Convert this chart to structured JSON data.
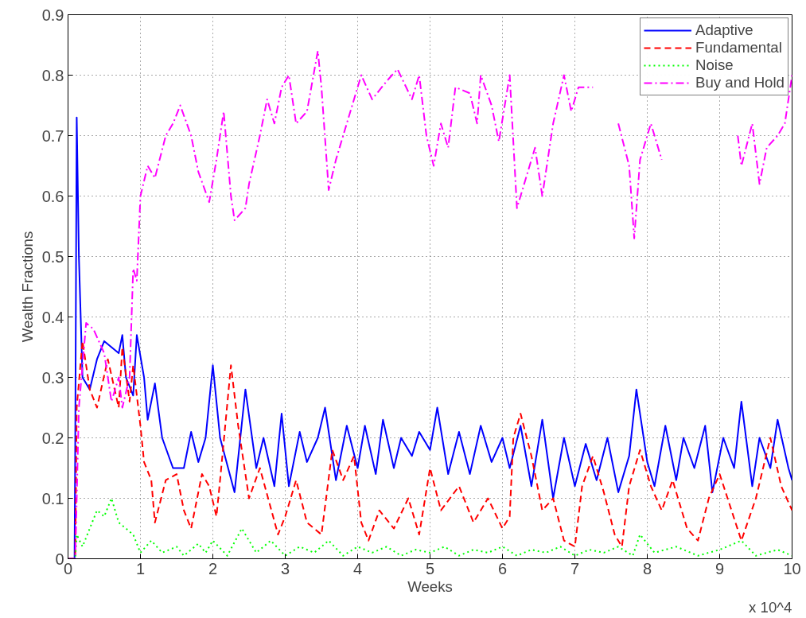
{
  "chart_data": {
    "type": "line",
    "xlabel": "Weeks",
    "ylabel": "Wealth Fractions",
    "annotations": [
      "x 10^4"
    ],
    "xlim": [
      0,
      10
    ],
    "ylim": [
      0,
      0.9
    ],
    "xticks": [
      0,
      1,
      2,
      3,
      4,
      5,
      6,
      7,
      8,
      9,
      10
    ],
    "yticks": [
      0,
      0.1,
      0.2,
      0.3,
      0.4,
      0.5,
      0.6,
      0.7,
      0.8,
      0.9
    ],
    "grid": true,
    "legend": "top right",
    "series": [
      {
        "name": "Adaptive",
        "color": "#0000ff",
        "line_style": "solid",
        "x": [
          0,
          0.09,
          0.1,
          0.12,
          0.15,
          0.2,
          0.3,
          0.4,
          0.5,
          0.6,
          0.7,
          0.75,
          0.8,
          0.9,
          0.95,
          1.05,
          1.1,
          1.2,
          1.3,
          1.45,
          1.6,
          1.7,
          1.8,
          1.9,
          2.0,
          2.1,
          2.3,
          2.45,
          2.6,
          2.7,
          2.85,
          2.95,
          3.05,
          3.2,
          3.3,
          3.45,
          3.55,
          3.7,
          3.85,
          4.0,
          4.1,
          4.25,
          4.35,
          4.5,
          4.6,
          4.75,
          4.85,
          5.0,
          5.1,
          5.25,
          5.4,
          5.55,
          5.7,
          5.85,
          6.0,
          6.1,
          6.25,
          6.4,
          6.55,
          6.7,
          6.85,
          7.0,
          7.15,
          7.3,
          7.45,
          7.6,
          7.75,
          7.85,
          8.0,
          8.1,
          8.25,
          8.4,
          8.5,
          8.65,
          8.8,
          8.9,
          9.05,
          9.2,
          9.3,
          9.45,
          9.55,
          9.7,
          9.8,
          9.95,
          10
        ],
        "values": [
          0,
          0,
          0.2,
          0.73,
          0.5,
          0.3,
          0.28,
          0.33,
          0.36,
          0.35,
          0.34,
          0.37,
          0.3,
          0.27,
          0.37,
          0.3,
          0.23,
          0.29,
          0.2,
          0.15,
          0.15,
          0.21,
          0.16,
          0.2,
          0.32,
          0.2,
          0.11,
          0.28,
          0.15,
          0.2,
          0.12,
          0.24,
          0.12,
          0.21,
          0.16,
          0.2,
          0.25,
          0.13,
          0.22,
          0.15,
          0.22,
          0.14,
          0.23,
          0.15,
          0.2,
          0.17,
          0.21,
          0.18,
          0.25,
          0.14,
          0.21,
          0.14,
          0.22,
          0.16,
          0.2,
          0.15,
          0.22,
          0.12,
          0.23,
          0.1,
          0.2,
          0.12,
          0.19,
          0.13,
          0.2,
          0.11,
          0.17,
          0.28,
          0.16,
          0.12,
          0.22,
          0.13,
          0.2,
          0.15,
          0.22,
          0.11,
          0.2,
          0.15,
          0.26,
          0.12,
          0.2,
          0.15,
          0.23,
          0.15,
          0.13
        ]
      },
      {
        "name": "Fundamental",
        "color": "#ff0000",
        "line_style": "dashed",
        "x": [
          0,
          0.1,
          0.12,
          0.2,
          0.3,
          0.4,
          0.55,
          0.7,
          0.75,
          0.85,
          0.9,
          1.0,
          1.05,
          1.15,
          1.2,
          1.35,
          1.5,
          1.6,
          1.7,
          1.85,
          1.95,
          2.05,
          2.1,
          2.25,
          2.35,
          2.5,
          2.65,
          2.9,
          3.0,
          3.15,
          3.3,
          3.5,
          3.65,
          3.8,
          3.95,
          4.05,
          4.15,
          4.3,
          4.5,
          4.7,
          4.85,
          5.0,
          5.15,
          5.4,
          5.6,
          5.8,
          6.0,
          6.1,
          6.15,
          6.25,
          6.4,
          6.55,
          6.7,
          6.85,
          7.0,
          7.1,
          7.25,
          7.4,
          7.55,
          7.65,
          7.75,
          7.9,
          8.05,
          8.2,
          8.35,
          8.55,
          8.7,
          8.85,
          9.0,
          9.3,
          9.5,
          9.7,
          9.85,
          10
        ],
        "values": [
          0,
          0,
          0.25,
          0.36,
          0.28,
          0.25,
          0.33,
          0.25,
          0.35,
          0.26,
          0.32,
          0.22,
          0.16,
          0.13,
          0.06,
          0.13,
          0.14,
          0.08,
          0.05,
          0.14,
          0.12,
          0.07,
          0.13,
          0.32,
          0.22,
          0.1,
          0.15,
          0.04,
          0.07,
          0.13,
          0.06,
          0.04,
          0.18,
          0.13,
          0.17,
          0.06,
          0.03,
          0.08,
          0.05,
          0.1,
          0.04,
          0.15,
          0.08,
          0.12,
          0.06,
          0.1,
          0.05,
          0.07,
          0.2,
          0.24,
          0.17,
          0.08,
          0.1,
          0.03,
          0.02,
          0.12,
          0.17,
          0.11,
          0.04,
          0.02,
          0.12,
          0.18,
          0.12,
          0.08,
          0.13,
          0.05,
          0.03,
          0.1,
          0.14,
          0.03,
          0.1,
          0.2,
          0.12,
          0.08
        ]
      },
      {
        "name": "Noise",
        "color": "#00ff00",
        "line_style": "dotted",
        "x": [
          0,
          0.1,
          0.12,
          0.2,
          0.4,
          0.5,
          0.6,
          0.7,
          0.9,
          1.0,
          1.15,
          1.3,
          1.5,
          1.6,
          1.8,
          1.9,
          2.0,
          2.2,
          2.4,
          2.6,
          2.8,
          3.0,
          3.2,
          3.4,
          3.6,
          3.8,
          4.0,
          4.2,
          4.4,
          4.6,
          4.8,
          5.0,
          5.2,
          5.4,
          5.6,
          5.8,
          6.0,
          6.2,
          6.4,
          6.6,
          6.8,
          7.0,
          7.2,
          7.4,
          7.6,
          7.8,
          7.9,
          8.1,
          8.4,
          8.7,
          9.0,
          9.3,
          9.5,
          9.8,
          10
        ],
        "values": [
          0,
          0,
          0.04,
          0.02,
          0.08,
          0.07,
          0.1,
          0.06,
          0.04,
          0.01,
          0.03,
          0.01,
          0.02,
          0.005,
          0.025,
          0.01,
          0.03,
          0.005,
          0.05,
          0.01,
          0.03,
          0.005,
          0.02,
          0.01,
          0.03,
          0.005,
          0.02,
          0.01,
          0.02,
          0.005,
          0.015,
          0.01,
          0.02,
          0.005,
          0.015,
          0.01,
          0.02,
          0.005,
          0.015,
          0.01,
          0.02,
          0.005,
          0.015,
          0.01,
          0.02,
          0.005,
          0.04,
          0.01,
          0.02,
          0.005,
          0.015,
          0.03,
          0.005,
          0.015,
          0.005
        ]
      },
      {
        "name": "Buy and Hold",
        "color": "#ff00ff",
        "line_style": "dashdot",
        "x": [
          0,
          0.1,
          0.15,
          0.25,
          0.35,
          0.5,
          0.6,
          0.7,
          0.75,
          0.85,
          0.9,
          0.95,
          1.0,
          1.1,
          1.2,
          1.35,
          1.45,
          1.55,
          1.7,
          1.8,
          1.95,
          2.05,
          2.15,
          2.25,
          2.3,
          2.45,
          2.5,
          2.65,
          2.75,
          2.85,
          2.95,
          3.05,
          3.15,
          3.3,
          3.45,
          3.5,
          3.6,
          3.7,
          3.85,
          4.05,
          4.2,
          4.4,
          4.55,
          4.75,
          4.85,
          4.95,
          5.05,
          5.15,
          5.25,
          5.35,
          5.55,
          5.65,
          5.7,
          5.85,
          5.95,
          6.1,
          6.2,
          6.35,
          6.45,
          6.55,
          6.7,
          6.85,
          6.95,
          7.05,
          7.25,
          7.5,
          7.6,
          7.75,
          7.82,
          7.9,
          8.05,
          8.2,
          8.3,
          9.2,
          9.25,
          9.3,
          9.45,
          9.55,
          9.65,
          9.8,
          9.9,
          10
        ],
        "values": [
          0,
          0,
          0.25,
          0.39,
          0.38,
          0.34,
          0.26,
          0.3,
          0.25,
          0.3,
          0.48,
          0.46,
          0.6,
          0.65,
          0.63,
          0.7,
          0.72,
          0.75,
          0.7,
          0.64,
          0.59,
          0.66,
          0.74,
          0.6,
          0.56,
          0.58,
          0.62,
          0.7,
          0.76,
          0.72,
          0.78,
          0.8,
          0.72,
          0.74,
          0.84,
          0.78,
          0.61,
          0.66,
          0.72,
          0.8,
          0.76,
          0.79,
          0.81,
          0.76,
          0.8,
          0.7,
          0.65,
          0.72,
          0.68,
          0.78,
          0.77,
          0.72,
          0.8,
          0.75,
          0.69,
          0.8,
          0.58,
          0.64,
          0.68,
          0.6,
          0.72,
          0.8,
          0.74,
          0.78,
          0.78,
          null,
          0.72,
          0.65,
          0.53,
          0.66,
          0.72,
          0.66,
          null,
          null,
          0.7,
          0.65,
          0.72,
          0.62,
          0.68,
          0.7,
          0.72,
          0.8
        ]
      }
    ]
  }
}
